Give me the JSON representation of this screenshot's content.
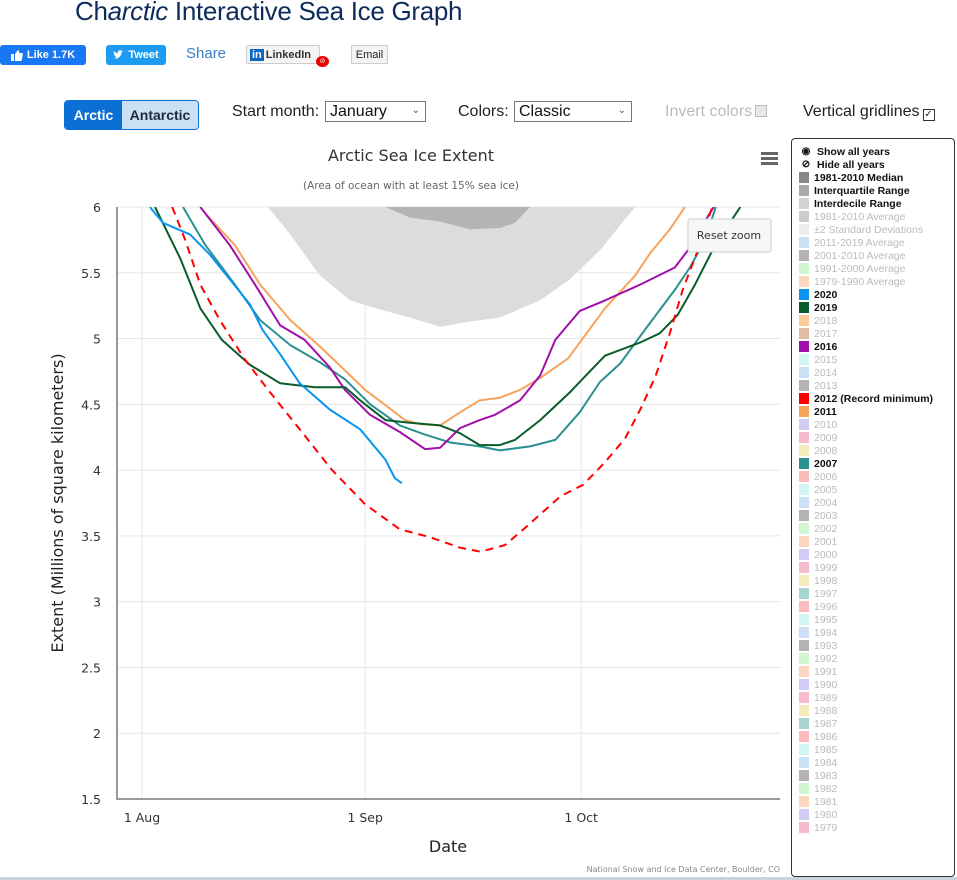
{
  "page": {
    "title_prefix": "Ch",
    "title_italic": "arctic",
    "title_suffix": " Interactive Sea Ice Graph"
  },
  "share": {
    "like_label": "Like 1.7K",
    "tweet_label": "Tweet",
    "share_label": "Share",
    "linkedin_label": "LinkedIn",
    "linkedin_badge": "in",
    "email_label": "Email",
    "like_icon": "thumbs-up-icon",
    "tweet_icon": "twitter-bird-icon"
  },
  "controls": {
    "hemisphere": {
      "options": [
        "Arctic",
        "Antarctic"
      ],
      "selected": "Arctic"
    },
    "start_month_label": "Start month:",
    "start_month_value": "January",
    "colors_label": "Colors:",
    "colors_value": "Classic",
    "invert_colors_label": "Invert colors",
    "invert_colors_checked": false,
    "vertical_gridlines_label": "Vertical gridlines",
    "vertical_gridlines_checked": true,
    "checkmark": "✓"
  },
  "chart_ui": {
    "reset_zoom_label": "Reset zoom",
    "menu_icon": "hamburger-menu-icon",
    "credit": "National Snow and Ice Data Center, Boulder, CO"
  },
  "legend": {
    "show_all": "Show all years",
    "hide_all": "Hide all years",
    "items": [
      {
        "label": "1981-2010 Median",
        "color": "#888888",
        "active": true
      },
      {
        "label": "Interquartile Range",
        "color": "#aaaaaa",
        "active": true
      },
      {
        "label": "Interdecile Range",
        "color": "#d4d4d4",
        "active": true
      },
      {
        "label": "1981-2010 Average",
        "color": "#cccccc",
        "active": false
      },
      {
        "label": "±2 Standard Deviations",
        "color": "#eeeeee",
        "active": false
      },
      {
        "label": "2011-2019 Average",
        "color": "#cce0f5",
        "active": false
      },
      {
        "label": "2001-2010 Average",
        "color": "#b3b3b3",
        "active": false
      },
      {
        "label": "1991-2000 Average",
        "color": "#d2f5d2",
        "active": false
      },
      {
        "label": "1979-1990 Average",
        "color": "#fbd6c0",
        "active": false
      },
      {
        "label": "2020",
        "color": "#0895ef",
        "active": true
      },
      {
        "label": "2019",
        "color": "#0a5c2c",
        "active": true
      },
      {
        "label": "2018",
        "color": "#fbcc9b",
        "active": false
      },
      {
        "label": "2017",
        "color": "#e0bba6",
        "active": false
      },
      {
        "label": "2016",
        "color": "#a10faa",
        "active": true
      },
      {
        "label": "2015",
        "color": "#d3f6f2",
        "active": false
      },
      {
        "label": "2014",
        "color": "#cce0f5",
        "active": false
      },
      {
        "label": "2013",
        "color": "#b3b3b3",
        "active": false
      },
      {
        "label": "2012 (Record minimum)",
        "color": "#ff0000",
        "active": true
      },
      {
        "label": "2011",
        "color": "#f7a35c",
        "active": true
      },
      {
        "label": "2010",
        "color": "#d0cdf4",
        "active": false
      },
      {
        "label": "2009",
        "color": "#f7bccc",
        "active": false
      },
      {
        "label": "2008",
        "color": "#f4eabc",
        "active": false
      },
      {
        "label": "2007",
        "color": "#2b908f",
        "active": true
      },
      {
        "label": "2006",
        "color": "#fbbcbc",
        "active": false
      },
      {
        "label": "2005",
        "color": "#d3f6f2",
        "active": false
      },
      {
        "label": "2004",
        "color": "#cce0f5",
        "active": false
      },
      {
        "label": "2003",
        "color": "#b3b3b3",
        "active": false
      },
      {
        "label": "2002",
        "color": "#d2f5d2",
        "active": false
      },
      {
        "label": "2001",
        "color": "#fbd6c0",
        "active": false
      },
      {
        "label": "2000",
        "color": "#d0cdf4",
        "active": false
      },
      {
        "label": "1999",
        "color": "#f7bccc",
        "active": false
      },
      {
        "label": "1998",
        "color": "#f4eabc",
        "active": false
      },
      {
        "label": "1997",
        "color": "#a8d5d2",
        "active": false
      },
      {
        "label": "1996",
        "color": "#fbbcbc",
        "active": false
      },
      {
        "label": "1995",
        "color": "#d3f6f2",
        "active": false
      },
      {
        "label": "1994",
        "color": "#cce0f5",
        "active": false
      },
      {
        "label": "1993",
        "color": "#b3b3b3",
        "active": false
      },
      {
        "label": "1992",
        "color": "#d2f5d2",
        "active": false
      },
      {
        "label": "1991",
        "color": "#fbd6c0",
        "active": false
      },
      {
        "label": "1990",
        "color": "#d0cdf4",
        "active": false
      },
      {
        "label": "1989",
        "color": "#f7bccc",
        "active": false
      },
      {
        "label": "1988",
        "color": "#f4eabc",
        "active": false
      },
      {
        "label": "1987",
        "color": "#a8d5d2",
        "active": false
      },
      {
        "label": "1986",
        "color": "#fbbcbc",
        "active": false
      },
      {
        "label": "1985",
        "color": "#d3f6f2",
        "active": false
      },
      {
        "label": "1984",
        "color": "#cce0f5",
        "active": false
      },
      {
        "label": "1983",
        "color": "#b3b3b3",
        "active": false
      },
      {
        "label": "1982",
        "color": "#d2f5d2",
        "active": false
      },
      {
        "label": "1981",
        "color": "#fbd6c0",
        "active": false
      },
      {
        "label": "1980",
        "color": "#d0cdf4",
        "active": false
      },
      {
        "label": "1979",
        "color": "#f7bccc",
        "active": false
      }
    ]
  },
  "chart_data": {
    "type": "line",
    "title": "Arctic Sea Ice Extent",
    "subtitle": "(Area of ocean with at least 15% sea ice)",
    "xlabel": "Date",
    "ylabel": "Extent (Millions of square kilometers)",
    "x_units": "days since 1 Aug",
    "xlim": [
      -3.6,
      88.6
    ],
    "ylim": [
      1.5,
      6
    ],
    "yticks": [
      1.5,
      2,
      2.5,
      3,
      3.5,
      4,
      4.5,
      5,
      5.5,
      6
    ],
    "ytick_labels": [
      "1.5",
      "2",
      "2.5",
      "3",
      "3.5",
      "4",
      "4.5",
      "5",
      "5.5",
      "6"
    ],
    "xticks": [
      0,
      31,
      61
    ],
    "xtick_labels": [
      "1 Aug",
      "1 Sep",
      "1 Oct"
    ],
    "grid": true,
    "bands": [
      {
        "name": "Interdecile Range",
        "color": "#dcdcdc",
        "upper": 6,
        "lower": [
          [
            17.5,
            6.0
          ],
          [
            20.6,
            5.79
          ],
          [
            24.7,
            5.48
          ],
          [
            28.9,
            5.29
          ],
          [
            33.1,
            5.22
          ],
          [
            37.2,
            5.16
          ],
          [
            41.4,
            5.09
          ],
          [
            45.6,
            5.13
          ],
          [
            49.7,
            5.16
          ],
          [
            55.3,
            5.29
          ],
          [
            59.4,
            5.45
          ],
          [
            63.6,
            5.67
          ],
          [
            66.4,
            5.86
          ],
          [
            68.5,
            6.0
          ]
        ]
      },
      {
        "name": "Interquartile Range",
        "color": "#b4b4b4",
        "upper": 6,
        "lower": [
          [
            33.8,
            6.0
          ],
          [
            37.2,
            5.92
          ],
          [
            41.4,
            5.89
          ],
          [
            45.6,
            5.83
          ],
          [
            49.7,
            5.84
          ],
          [
            51.8,
            5.88
          ],
          [
            53.9,
            6.0
          ]
        ]
      }
    ],
    "series": [
      {
        "name": "2011",
        "color": "#f7a35c",
        "dashed": false,
        "points": [
          [
            8.8,
            5.95
          ],
          [
            12.9,
            5.71
          ],
          [
            16.4,
            5.41
          ],
          [
            20.6,
            5.14
          ],
          [
            24.7,
            4.94
          ],
          [
            31.0,
            4.61
          ],
          [
            34.4,
            4.47
          ],
          [
            36.5,
            4.38
          ],
          [
            38.6,
            4.35
          ],
          [
            41.4,
            4.34
          ],
          [
            44.2,
            4.44
          ],
          [
            46.9,
            4.53
          ],
          [
            49.7,
            4.55
          ],
          [
            52.5,
            4.61
          ],
          [
            55.3,
            4.7
          ],
          [
            59.2,
            4.85
          ],
          [
            60.8,
            4.97
          ],
          [
            64.3,
            5.23
          ],
          [
            68.5,
            5.48
          ],
          [
            70.6,
            5.65
          ],
          [
            73.3,
            5.83
          ],
          [
            75.4,
            6.0
          ]
        ]
      },
      {
        "name": "2007",
        "color": "#2b908f",
        "dashed": false,
        "points": [
          [
            5.7,
            6.0
          ],
          [
            8.8,
            5.71
          ],
          [
            12.9,
            5.41
          ],
          [
            16.4,
            5.14
          ],
          [
            20.6,
            4.95
          ],
          [
            24.7,
            4.82
          ],
          [
            28.2,
            4.69
          ],
          [
            31.7,
            4.5
          ],
          [
            35.8,
            4.34
          ],
          [
            39.3,
            4.27
          ],
          [
            42.8,
            4.21
          ],
          [
            46.9,
            4.18
          ],
          [
            49.7,
            4.15
          ],
          [
            53.9,
            4.18
          ],
          [
            57.4,
            4.23
          ],
          [
            60.8,
            4.44
          ],
          [
            63.6,
            4.67
          ],
          [
            66.4,
            4.81
          ],
          [
            70.3,
            5.1
          ],
          [
            74.0,
            5.37
          ],
          [
            76.1,
            5.54
          ],
          [
            78.2,
            5.75
          ],
          [
            79.7,
            6.0
          ]
        ]
      },
      {
        "name": "2016",
        "color": "#a10faa",
        "dashed": false,
        "points": [
          [
            8.1,
            6.0
          ],
          [
            12.2,
            5.71
          ],
          [
            15.7,
            5.41
          ],
          [
            19.2,
            5.1
          ],
          [
            22.6,
            4.99
          ],
          [
            26.1,
            4.78
          ],
          [
            28.2,
            4.61
          ],
          [
            31.7,
            4.42
          ],
          [
            35.8,
            4.29
          ],
          [
            39.3,
            4.16
          ],
          [
            41.4,
            4.17
          ],
          [
            44.2,
            4.32
          ],
          [
            46.9,
            4.38
          ],
          [
            49.0,
            4.42
          ],
          [
            52.5,
            4.53
          ],
          [
            55.3,
            4.72
          ],
          [
            57.4,
            4.99
          ],
          [
            60.8,
            5.21
          ],
          [
            64.3,
            5.29
          ],
          [
            69.2,
            5.41
          ],
          [
            74.0,
            5.54
          ],
          [
            75.8,
            5.67
          ],
          [
            77.5,
            5.83
          ],
          [
            79.4,
            6.0
          ]
        ]
      },
      {
        "name": "2019",
        "color": "#0a5c2c",
        "dashed": false,
        "points": [
          [
            1.8,
            6.0
          ],
          [
            5.3,
            5.61
          ],
          [
            8.1,
            5.23
          ],
          [
            11.1,
            4.99
          ],
          [
            15.0,
            4.8
          ],
          [
            19.2,
            4.66
          ],
          [
            24.0,
            4.63
          ],
          [
            28.2,
            4.63
          ],
          [
            30.3,
            4.53
          ],
          [
            33.8,
            4.38
          ],
          [
            37.2,
            4.36
          ],
          [
            41.4,
            4.34
          ],
          [
            44.2,
            4.28
          ],
          [
            46.9,
            4.19
          ],
          [
            49.7,
            4.19
          ],
          [
            51.8,
            4.23
          ],
          [
            55.3,
            4.38
          ],
          [
            59.4,
            4.59
          ],
          [
            62.2,
            4.75
          ],
          [
            64.3,
            4.87
          ],
          [
            69.2,
            4.97
          ],
          [
            71.9,
            5.04
          ],
          [
            74.4,
            5.18
          ],
          [
            76.8,
            5.41
          ],
          [
            79.6,
            5.71
          ],
          [
            83.1,
            6.0
          ]
        ]
      },
      {
        "name": "2020",
        "color": "#0895ef",
        "dashed": false,
        "points": [
          [
            1.1,
            6.0
          ],
          [
            2.9,
            5.88
          ],
          [
            6.7,
            5.79
          ],
          [
            9.4,
            5.64
          ],
          [
            12.2,
            5.45
          ],
          [
            15.0,
            5.26
          ],
          [
            16.7,
            5.07
          ],
          [
            19.2,
            4.88
          ],
          [
            21.9,
            4.66
          ],
          [
            26.1,
            4.46
          ],
          [
            30.3,
            4.31
          ],
          [
            33.8,
            4.08
          ],
          [
            35.1,
            3.94
          ],
          [
            36.1,
            3.9
          ]
        ]
      },
      {
        "name": "2012 (Record minimum)",
        "color": "#ff0000",
        "dashed": true,
        "points": [
          [
            4.2,
            6.0
          ],
          [
            6.0,
            5.75
          ],
          [
            8.1,
            5.41
          ],
          [
            10.8,
            5.14
          ],
          [
            14.3,
            4.84
          ],
          [
            17.8,
            4.59
          ],
          [
            21.9,
            4.31
          ],
          [
            26.4,
            4.0
          ],
          [
            31.0,
            3.74
          ],
          [
            35.8,
            3.55
          ],
          [
            40.0,
            3.49
          ],
          [
            44.2,
            3.41
          ],
          [
            47.0,
            3.38
          ],
          [
            50.4,
            3.43
          ],
          [
            53.2,
            3.56
          ],
          [
            58.1,
            3.8
          ],
          [
            61.3,
            3.89
          ],
          [
            64.3,
            4.06
          ],
          [
            67.1,
            4.24
          ],
          [
            69.2,
            4.46
          ],
          [
            71.3,
            4.71
          ],
          [
            73.3,
            5.04
          ],
          [
            75.1,
            5.37
          ],
          [
            77.2,
            5.67
          ],
          [
            79.2,
            6.0
          ]
        ]
      }
    ]
  }
}
